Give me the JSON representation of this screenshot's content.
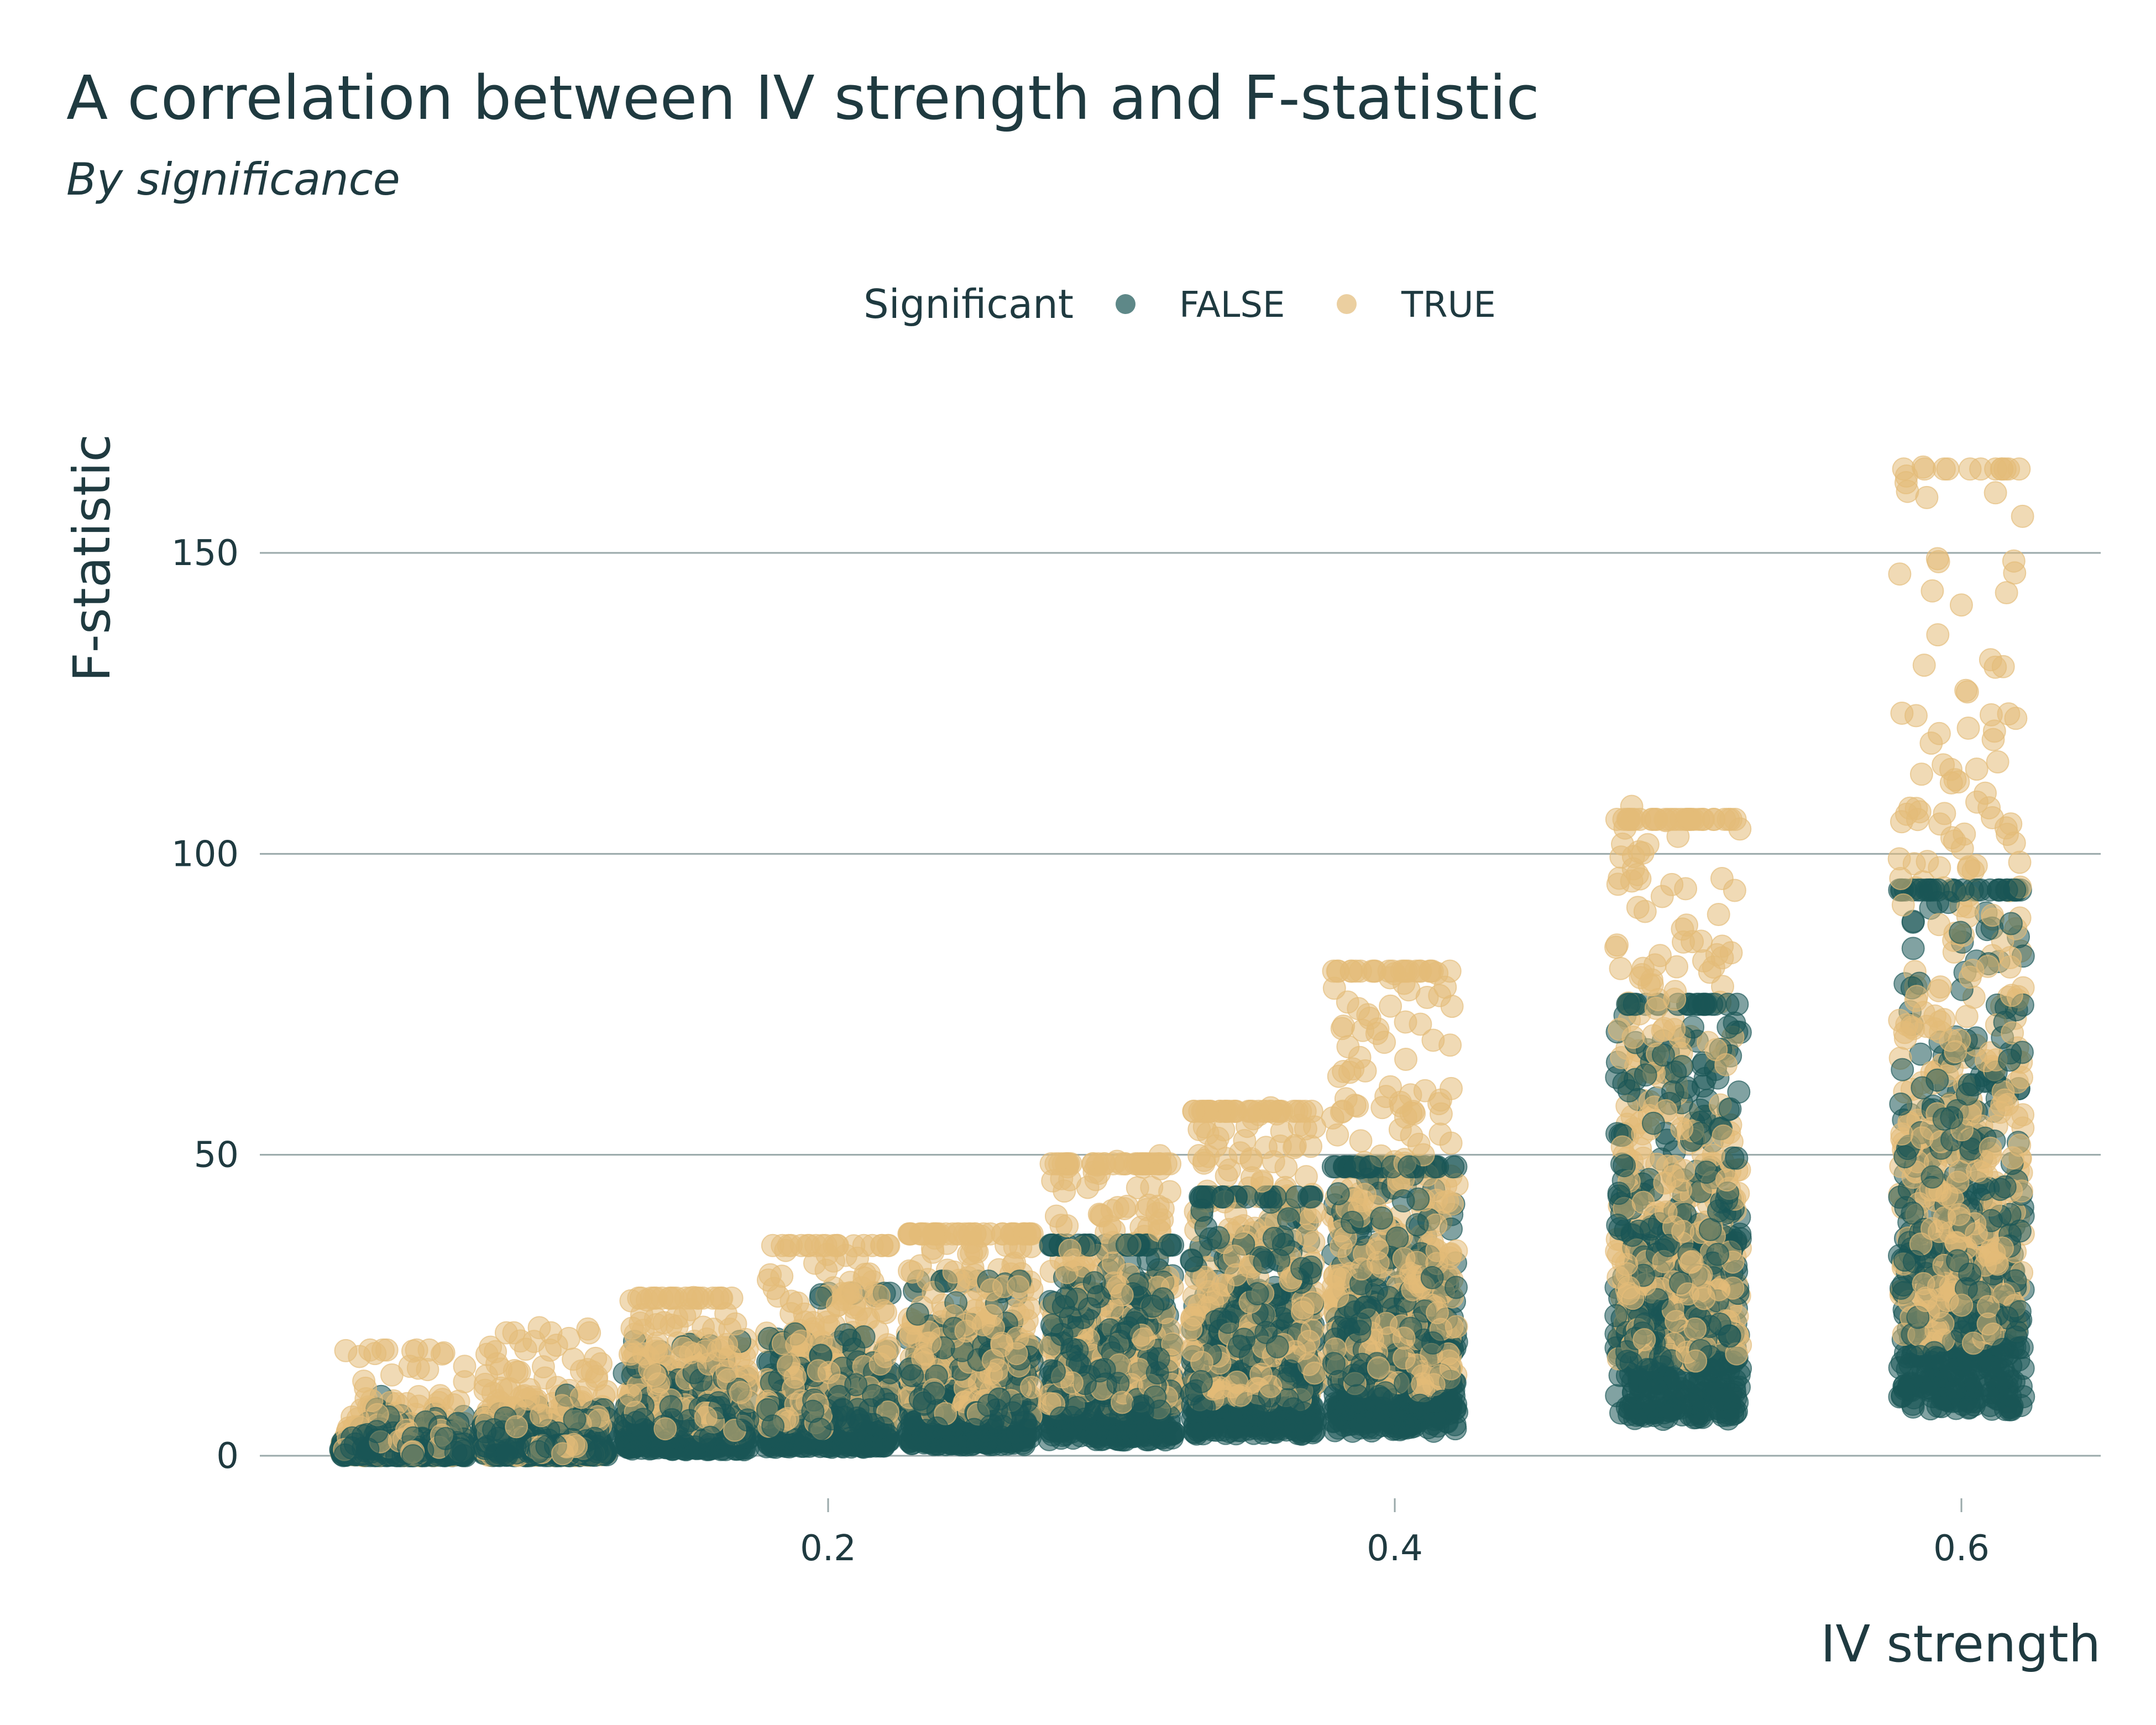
{
  "chart_data": {
    "type": "scatter",
    "title": "A correlation between IV strength and F-statistic",
    "subtitle": "By significance",
    "xlabel": "IV strength",
    "ylabel": "F-statistic",
    "xlim": [
      0.0,
      0.63
    ],
    "ylim": [
      -8,
      170
    ],
    "x_ticks": [
      0.2,
      0.4,
      0.6
    ],
    "x_tick_labels": [
      "0.2",
      "0.4",
      "0.6"
    ],
    "y_ticks": [
      0,
      50,
      100,
      150
    ],
    "y_tick_labels": [
      "0",
      "50",
      "100",
      "150"
    ],
    "grid": "horizontal",
    "jitter_width": 0.022,
    "legend": {
      "title": "Significant",
      "position": "top",
      "entries": [
        {
          "label": "FALSE",
          "color": "#1a5656"
        },
        {
          "label": "TRUE",
          "color": "#e3bb78"
        }
      ]
    },
    "groups": [
      {
        "x": 0.05,
        "false": {
          "max": 10,
          "typical": 2.5
        },
        "true": {
          "max": 18.5,
          "typical": 5
        }
      },
      {
        "x": 0.1,
        "false": {
          "max": 11,
          "typical": 3
        },
        "true": {
          "max": 21.5,
          "typical": 8
        }
      },
      {
        "x": 0.15,
        "false": {
          "max": 19,
          "typical": 5
        },
        "true": {
          "max": 27,
          "typical": 12
        }
      },
      {
        "x": 0.2,
        "false": {
          "max": 27,
          "typical": 7
        },
        "true": {
          "max": 36,
          "typical": 15
        }
      },
      {
        "x": 0.25,
        "false": {
          "max": 29,
          "typical": 9
        },
        "true": {
          "max": 38,
          "typical": 20
        }
      },
      {
        "x": 0.3,
        "false": {
          "max": 35,
          "typical": 13
        },
        "true": {
          "max": 50,
          "typical": 25
        }
      },
      {
        "x": 0.35,
        "false": {
          "max": 43,
          "typical": 17
        },
        "true": {
          "max": 59,
          "typical": 30
        }
      },
      {
        "x": 0.4,
        "false": {
          "max": 48,
          "typical": 20
        },
        "true": {
          "max": 83,
          "typical": 36
        }
      },
      {
        "x": 0.5,
        "false": {
          "max": 75,
          "typical": 30
        },
        "true": {
          "max": 109,
          "typical": 52
        }
      },
      {
        "x": 0.6,
        "false": {
          "max": 94,
          "typical": 38
        },
        "true": {
          "max": 169,
          "typical": 62
        }
      }
    ],
    "colors": {
      "false": "#1a5656",
      "true": "#e3bb78",
      "text": "#1f3a40",
      "grid": "#9aa9aa"
    }
  }
}
